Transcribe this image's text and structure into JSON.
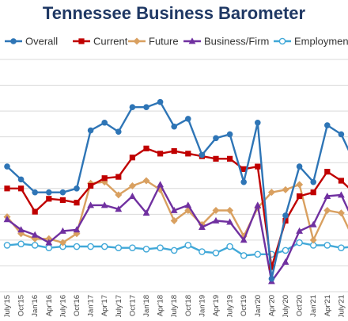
{
  "chart_data": {
    "type": "line",
    "title": "Tennessee Business Barometer",
    "xlabel": "",
    "ylabel": "",
    "grid": true,
    "legend_position": "top",
    "categories": [
      "July'15",
      "Oct'15",
      "Jan'16",
      "Apr'16",
      "July'16",
      "Oct'16",
      "Jan'17",
      "Apr'17",
      "July'17",
      "Oct'17",
      "Jan'18",
      "Apr'18",
      "July'18",
      "Oct'18",
      "Jan'19",
      "Apr'19",
      "July'19",
      "Oct'19",
      "Jan'20",
      "Apr'20",
      "July'20",
      "Oct'20",
      "Jan'21",
      "Apr'21",
      "July'21",
      "Oct'21"
    ],
    "series": [
      {
        "name": "Overall",
        "color": "#2e75b6",
        "marker": "circle",
        "values": [
          62,
          52,
          42,
          42,
          42,
          45,
          90,
          96,
          89,
          108,
          108,
          112,
          93,
          99,
          71,
          84,
          87,
          50,
          96,
          -25,
          24,
          62,
          50,
          94,
          87,
          64
        ]
      },
      {
        "name": "Current",
        "color": "#c00000",
        "marker": "square",
        "values": [
          45,
          45,
          27,
          37,
          36,
          34,
          47,
          53,
          54,
          69,
          76,
          72,
          74,
          72,
          70,
          68,
          68,
          60,
          62,
          -16,
          20,
          39,
          42,
          58,
          51,
          41
        ]
      },
      {
        "name": "Future",
        "color": "#d9a060",
        "marker": "diamond",
        "values": [
          23,
          10,
          6,
          6,
          3,
          10,
          49,
          50,
          40,
          47,
          51,
          44,
          20,
          28,
          17,
          28,
          28,
          8,
          30,
          42,
          44,
          48,
          5,
          28,
          26,
          3
        ]
      },
      {
        "name": "Business/Firm",
        "color": "#7030a0",
        "marker": "triangle",
        "values": [
          21,
          13,
          9,
          3,
          12,
          13,
          32,
          32,
          29,
          39,
          26,
          48,
          28,
          32,
          15,
          20,
          19,
          5,
          32,
          -27,
          -12,
          12,
          17,
          39,
          40,
          17
        ]
      },
      {
        "name": "Employment",
        "color": "#41a8d8",
        "marker": "open-circle",
        "values": [
          1,
          2,
          1,
          -1,
          0,
          0,
          0,
          0,
          -1,
          -1,
          -2,
          -1,
          -3,
          1,
          -4,
          -5,
          0,
          -7,
          -6,
          -6,
          -3,
          3,
          1,
          1,
          -1,
          0
        ]
      }
    ],
    "ylim": [
      -35,
      145
    ]
  }
}
